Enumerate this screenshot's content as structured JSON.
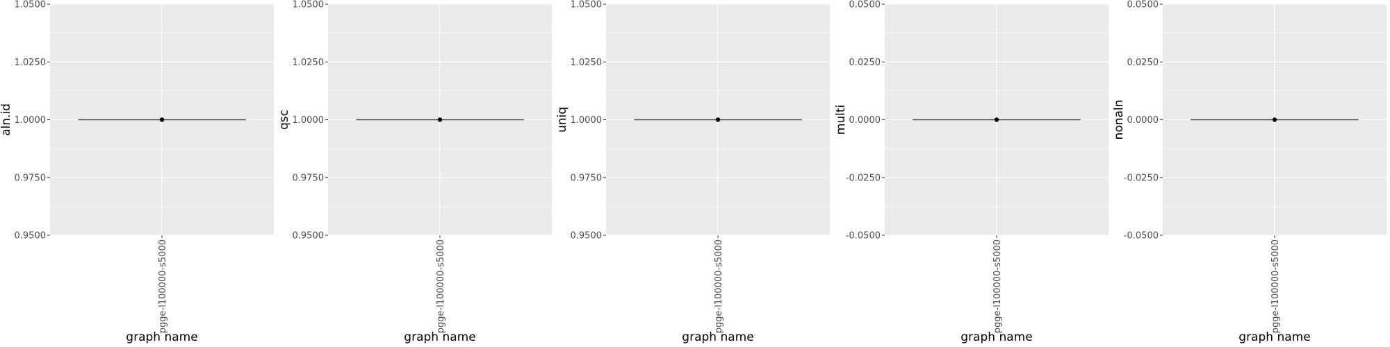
{
  "chart_data": [
    {
      "type": "pointrange",
      "xlabel": "graph name",
      "ylabel": "aln.id",
      "categories": [
        "pgge-l100000-s5000"
      ],
      "values": [
        1.0
      ],
      "ylim": [
        0.95,
        1.05
      ],
      "yticks": [
        "0.9500",
        "0.9750",
        "1.0000",
        "1.0250",
        "1.0500"
      ],
      "grid": true
    },
    {
      "type": "pointrange",
      "xlabel": "graph name",
      "ylabel": "qsc",
      "categories": [
        "pgge-l100000-s5000"
      ],
      "values": [
        1.0
      ],
      "ylim": [
        0.95,
        1.05
      ],
      "yticks": [
        "0.9500",
        "0.9750",
        "1.0000",
        "1.0250",
        "1.0500"
      ],
      "grid": true
    },
    {
      "type": "pointrange",
      "xlabel": "graph name",
      "ylabel": "uniq",
      "categories": [
        "pgge-l100000-s5000"
      ],
      "values": [
        1.0
      ],
      "ylim": [
        0.95,
        1.05
      ],
      "yticks": [
        "0.9500",
        "0.9750",
        "1.0000",
        "1.0250",
        "1.0500"
      ],
      "grid": true
    },
    {
      "type": "pointrange",
      "xlabel": "graph name",
      "ylabel": "multi",
      "categories": [
        "pgge-l100000-s5000"
      ],
      "values": [
        0.0
      ],
      "ylim": [
        -0.05,
        0.05
      ],
      "yticks": [
        "-0.0500",
        "-0.0250",
        "0.0000",
        "0.0250",
        "0.0500"
      ],
      "grid": true
    },
    {
      "type": "pointrange",
      "xlabel": "graph name",
      "ylabel": "nonaln",
      "categories": [
        "pgge-l100000-s5000"
      ],
      "values": [
        0.0
      ],
      "ylim": [
        -0.05,
        0.05
      ],
      "yticks": [
        "-0.0500",
        "-0.0250",
        "0.0000",
        "0.0250",
        "0.0500"
      ],
      "grid": true
    }
  ]
}
